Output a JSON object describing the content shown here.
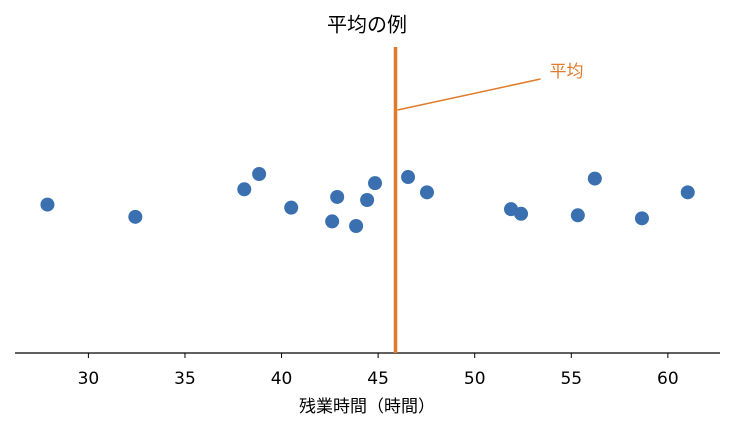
{
  "chart_data": {
    "type": "scatter",
    "title": "平均の例",
    "x_label": "残業時間（時間）",
    "x": [
      27.88,
      32.43,
      38.07,
      38.84,
      40.5,
      42.62,
      42.88,
      43.86,
      44.43,
      44.84,
      46.55,
      47.53,
      51.88,
      52.4,
      55.34,
      56.22,
      58.66,
      61.03
    ],
    "y": [
      -0.03,
      -0.11,
      0.07,
      0.17,
      -0.05,
      -0.14,
      0.02,
      -0.17,
      0,
      0.11,
      0.15,
      0.05,
      -0.06,
      -0.09,
      -0.1,
      0.14,
      -0.12,
      0.05
    ],
    "color": "#3a6fb0",
    "xlim": [
      26.2,
      62.7
    ],
    "xticks": [
      30,
      35,
      40,
      45,
      50,
      55,
      60
    ],
    "ylim": [
      -1,
      1
    ],
    "mean": {
      "value": 45.9,
      "label": "平均",
      "color": "#e07b2a"
    }
  }
}
